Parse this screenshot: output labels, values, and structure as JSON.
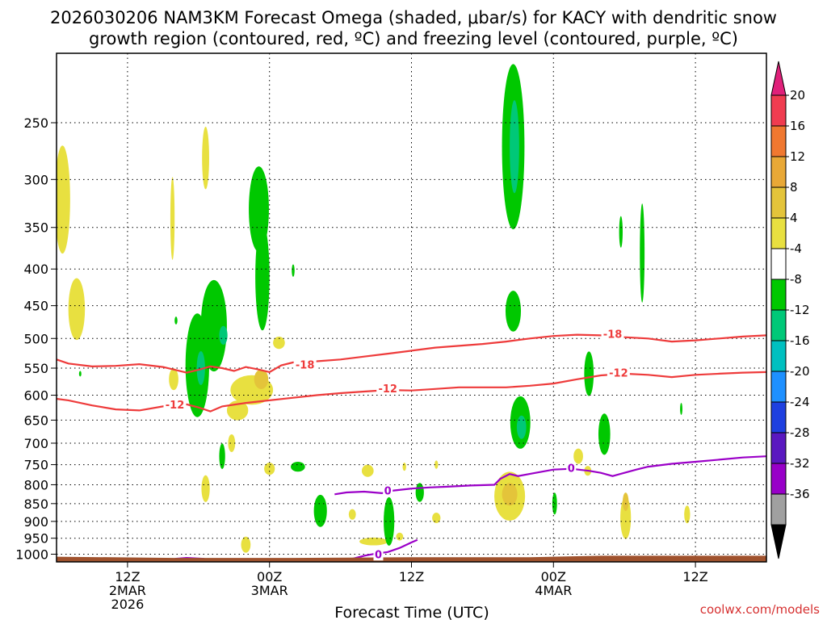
{
  "chart_data": {
    "type": "heatmap",
    "title_lines": [
      "2026030206 NAM3KM Forecast Omega (shaded, μbar/s) for KACY with dendritic snow",
      "growth region (contoured, red, ºC) and freezing level (contoured, purple, ºC)"
    ],
    "xlabel": "Forecast Time (UTC)",
    "ylabel": "",
    "x_unit": "forecast hour",
    "x_range": [
      0,
      60
    ],
    "y_unit": "hPa",
    "y_range": [
      1025,
      200
    ],
    "y_ticks": [
      250,
      300,
      350,
      400,
      450,
      500,
      550,
      600,
      650,
      700,
      750,
      800,
      850,
      900,
      950,
      1000
    ],
    "x_ticks": [
      {
        "hour": 6,
        "lines": [
          "12Z",
          "2MAR",
          "2026"
        ]
      },
      {
        "hour": 18,
        "lines": [
          "00Z",
          "3MAR"
        ]
      },
      {
        "hour": 30,
        "lines": [
          "12Z"
        ]
      },
      {
        "hour": 42,
        "lines": [
          "00Z",
          "4MAR"
        ]
      },
      {
        "hour": 54,
        "lines": [
          "12Z"
        ]
      }
    ],
    "grid": "dotted",
    "colorbar": {
      "labels": [
        "20",
        "16",
        "12",
        "8",
        "4",
        "-4",
        "-8",
        "-12",
        "-16",
        "-20",
        "-24",
        "-28",
        "-32",
        "-36"
      ],
      "colors": [
        "#f03c50",
        "#f07830",
        "#e8a836",
        "#e4c43a",
        "#e8e040",
        "#ffffff",
        "#00c800",
        "#00c878",
        "#00c0c0",
        "#1e90ff",
        "#1e40e0",
        "#5a18c0",
        "#9800c8",
        "#a0a0a0"
      ],
      "top_arrow": "#e0207a",
      "bottom_arrow": "#000000"
    },
    "contours": [
      {
        "name": "-18",
        "color": "#ee3b3b",
        "points": [
          [
            0,
            535
          ],
          [
            1,
            542
          ],
          [
            3,
            547
          ],
          [
            5,
            546
          ],
          [
            7,
            543
          ],
          [
            9,
            548
          ],
          [
            10,
            553
          ],
          [
            11,
            558
          ],
          [
            12,
            553
          ],
          [
            13,
            547
          ],
          [
            14,
            550
          ],
          [
            15,
            555
          ],
          [
            16,
            548
          ],
          [
            17,
            552
          ],
          [
            18,
            557
          ],
          [
            19,
            545
          ],
          [
            20,
            540
          ],
          [
            22,
            538
          ],
          [
            24,
            535
          ],
          [
            26,
            530
          ],
          [
            28,
            525
          ],
          [
            30,
            520
          ],
          [
            32,
            515
          ],
          [
            34,
            512
          ],
          [
            36,
            509
          ],
          [
            38,
            505
          ],
          [
            40,
            500
          ],
          [
            42,
            496
          ],
          [
            44,
            494
          ],
          [
            46,
            495
          ],
          [
            48,
            498
          ],
          [
            50,
            500
          ],
          [
            52,
            505
          ],
          [
            54,
            503
          ],
          [
            56,
            500
          ],
          [
            58,
            497
          ],
          [
            60,
            495
          ]
        ],
        "labels": [
          [
            21,
            545
          ],
          [
            47,
            494
          ]
        ]
      },
      {
        "name": "-12",
        "color": "#ee3b3b",
        "points": [
          [
            0,
            607
          ],
          [
            1,
            610
          ],
          [
            3,
            620
          ],
          [
            5,
            628
          ],
          [
            7,
            630
          ],
          [
            9,
            622
          ],
          [
            11,
            618
          ],
          [
            12,
            624
          ],
          [
            13,
            632
          ],
          [
            14,
            622
          ],
          [
            16,
            615
          ],
          [
            18,
            610
          ],
          [
            20,
            605
          ],
          [
            22,
            600
          ],
          [
            24,
            596
          ],
          [
            26,
            593
          ],
          [
            28,
            590
          ],
          [
            30,
            591
          ],
          [
            32,
            588
          ],
          [
            34,
            585
          ],
          [
            36,
            585
          ],
          [
            38,
            585
          ],
          [
            40,
            582
          ],
          [
            42,
            578
          ],
          [
            44,
            570
          ],
          [
            46,
            563
          ],
          [
            48,
            560
          ],
          [
            50,
            562
          ],
          [
            52,
            566
          ],
          [
            54,
            562
          ],
          [
            56,
            560
          ],
          [
            58,
            558
          ],
          [
            60,
            557
          ]
        ],
        "labels": [
          [
            10,
            620
          ],
          [
            28,
            588
          ],
          [
            47.5,
            559
          ]
        ]
      },
      {
        "name": "0",
        "color": "#9b00c8",
        "points": [
          [
            23.5,
            825
          ],
          [
            24.5,
            820
          ],
          [
            26,
            818
          ],
          [
            27.5,
            822
          ],
          [
            28.5,
            815
          ],
          [
            30,
            810
          ],
          [
            31.5,
            807
          ],
          [
            33,
            805
          ],
          [
            35,
            802
          ],
          [
            37,
            800
          ],
          [
            37.5,
            785
          ],
          [
            38.3,
            773
          ],
          [
            39,
            778
          ],
          [
            40.5,
            770
          ],
          [
            42,
            762
          ],
          [
            43.5,
            760
          ],
          [
            45,
            765
          ],
          [
            46,
            770
          ],
          [
            47,
            778
          ],
          [
            48,
            770
          ],
          [
            49,
            762
          ],
          [
            50,
            755
          ],
          [
            52,
            748
          ],
          [
            54,
            743
          ],
          [
            56,
            738
          ],
          [
            58,
            733
          ],
          [
            60,
            730
          ]
        ],
        "labels": [
          [
            28,
            817
          ],
          [
            43.5,
            760
          ]
        ]
      },
      {
        "name": "0b",
        "color": "#9b00c8",
        "points": [
          [
            25,
            1015
          ],
          [
            26,
            1005
          ],
          [
            27,
            998
          ],
          [
            28,
            993
          ],
          [
            29,
            980
          ],
          [
            30,
            963
          ],
          [
            30.5,
            955
          ]
        ],
        "labels": [
          [
            27.2,
            1002
          ]
        ]
      },
      {
        "name": "0c",
        "color": "#9b00c8",
        "points": [
          [
            10,
            1015
          ],
          [
            11,
            1012
          ],
          [
            12.5,
            1015
          ]
        ],
        "labels": []
      }
    ],
    "regions": [
      {
        "level": 4,
        "x": 0.5,
        "y": 320,
        "rx": 0.65,
        "ry": 55
      },
      {
        "level": 4,
        "x": 1.7,
        "y": 455,
        "rx": 0.7,
        "ry": 45
      },
      {
        "level": 4,
        "x": 12.6,
        "y": 280,
        "rx": 0.3,
        "ry": 28
      },
      {
        "level": 4,
        "x": 9.8,
        "y": 340,
        "rx": 0.18,
        "ry": 45
      },
      {
        "level": 4,
        "x": 9.9,
        "y": 570,
        "rx": 0.4,
        "ry": 20
      },
      {
        "level": 4,
        "x": 16.5,
        "y": 590,
        "rx": 1.8,
        "ry": 28
      },
      {
        "level": 4,
        "x": 15.3,
        "y": 630,
        "rx": 0.9,
        "ry": 20
      },
      {
        "level": 4,
        "x": 14.8,
        "y": 700,
        "rx": 0.3,
        "ry": 20
      },
      {
        "level": 8,
        "x": 17.3,
        "y": 570,
        "rx": 0.6,
        "ry": 18
      },
      {
        "level": 4,
        "x": 18.8,
        "y": 507,
        "rx": 0.5,
        "ry": 10
      },
      {
        "level": 4,
        "x": 12.6,
        "y": 810,
        "rx": 0.35,
        "ry": 35
      },
      {
        "level": 4,
        "x": 16.0,
        "y": 970,
        "rx": 0.4,
        "ry": 25
      },
      {
        "level": 4,
        "x": 18.0,
        "y": 760,
        "rx": 0.45,
        "ry": 15
      },
      {
        "level": 4,
        "x": 26.3,
        "y": 765,
        "rx": 0.5,
        "ry": 15
      },
      {
        "level": 4,
        "x": 25.0,
        "y": 880,
        "rx": 0.3,
        "ry": 15
      },
      {
        "level": 4,
        "x": 26.8,
        "y": 960,
        "rx": 1.2,
        "ry": 12
      },
      {
        "level": 4,
        "x": 29.0,
        "y": 945,
        "rx": 0.3,
        "ry": 12
      },
      {
        "level": 4,
        "x": 29.4,
        "y": 755,
        "rx": 0.15,
        "ry": 10
      },
      {
        "level": 4,
        "x": 32.1,
        "y": 750,
        "rx": 0.15,
        "ry": 10
      },
      {
        "level": 4,
        "x": 32.1,
        "y": 890,
        "rx": 0.35,
        "ry": 15
      },
      {
        "level": 4,
        "x": 38.3,
        "y": 830,
        "rx": 1.3,
        "ry": 65
      },
      {
        "level": 8,
        "x": 38.3,
        "y": 825,
        "rx": 0.65,
        "ry": 30
      },
      {
        "level": 4,
        "x": 44.1,
        "y": 730,
        "rx": 0.4,
        "ry": 18
      },
      {
        "level": 4,
        "x": 44.9,
        "y": 765,
        "rx": 0.3,
        "ry": 12
      },
      {
        "level": 4,
        "x": 48.1,
        "y": 890,
        "rx": 0.45,
        "ry": 60
      },
      {
        "level": 8,
        "x": 48.1,
        "y": 845,
        "rx": 0.25,
        "ry": 25
      },
      {
        "level": 4,
        "x": 53.3,
        "y": 880,
        "rx": 0.25,
        "ry": 25
      },
      {
        "level": -4,
        "x": 2.0,
        "y": 560,
        "rx": 0.1,
        "ry": 5
      },
      {
        "level": -4,
        "x": 20.0,
        "y": 402,
        "rx": 0.12,
        "ry": 8
      },
      {
        "level": -4,
        "x": 10.1,
        "y": 472,
        "rx": 0.12,
        "ry": 6
      },
      {
        "level": -4,
        "x": 11.9,
        "y": 545,
        "rx": 1.0,
        "ry": 90
      },
      {
        "level": -4,
        "x": 13.3,
        "y": 480,
        "rx": 1.1,
        "ry": 70
      },
      {
        "level": -8,
        "x": 12.2,
        "y": 550,
        "rx": 0.35,
        "ry": 30
      },
      {
        "level": -8,
        "x": 14.1,
        "y": 495,
        "rx": 0.35,
        "ry": 15
      },
      {
        "level": -4,
        "x": 17.1,
        "y": 330,
        "rx": 0.85,
        "ry": 45
      },
      {
        "level": -4,
        "x": 17.4,
        "y": 410,
        "rx": 0.6,
        "ry": 70
      },
      {
        "level": -4,
        "x": 14.0,
        "y": 730,
        "rx": 0.25,
        "ry": 30
      },
      {
        "level": -4,
        "x": 20.4,
        "y": 755,
        "rx": 0.6,
        "ry": 12
      },
      {
        "level": -4,
        "x": 22.3,
        "y": 870,
        "rx": 0.55,
        "ry": 45
      },
      {
        "level": -4,
        "x": 28.1,
        "y": 900,
        "rx": 0.45,
        "ry": 70
      },
      {
        "level": -4,
        "x": 30.7,
        "y": 820,
        "rx": 0.35,
        "ry": 25
      },
      {
        "level": -4,
        "x": 38.6,
        "y": 270,
        "rx": 0.95,
        "ry": 70
      },
      {
        "level": -8,
        "x": 38.7,
        "y": 270,
        "rx": 0.4,
        "ry": 40
      },
      {
        "level": -4,
        "x": 38.6,
        "y": 458,
        "rx": 0.65,
        "ry": 30
      },
      {
        "level": -4,
        "x": 39.2,
        "y": 655,
        "rx": 0.85,
        "ry": 55
      },
      {
        "level": -8,
        "x": 39.3,
        "y": 665,
        "rx": 0.4,
        "ry": 25
      },
      {
        "level": -4,
        "x": 45.0,
        "y": 560,
        "rx": 0.4,
        "ry": 40
      },
      {
        "level": -4,
        "x": 46.3,
        "y": 680,
        "rx": 0.5,
        "ry": 45
      },
      {
        "level": -4,
        "x": 42.1,
        "y": 850,
        "rx": 0.2,
        "ry": 30
      },
      {
        "level": -4,
        "x": 47.7,
        "y": 355,
        "rx": 0.15,
        "ry": 18
      },
      {
        "level": -4,
        "x": 49.5,
        "y": 380,
        "rx": 0.2,
        "ry": 60
      },
      {
        "level": -4,
        "x": 52.8,
        "y": 627,
        "rx": 0.1,
        "ry": 12
      }
    ],
    "ground": {
      "color": "#a0522d",
      "points": [
        [
          0,
          1008
        ],
        [
          10,
          1012
        ],
        [
          20,
          1012
        ],
        [
          30,
          1010
        ],
        [
          40,
          1010
        ],
        [
          46,
          1005
        ],
        [
          50,
          1005
        ],
        [
          60,
          1005
        ]
      ]
    }
  },
  "credit": "coolwx.com/models"
}
